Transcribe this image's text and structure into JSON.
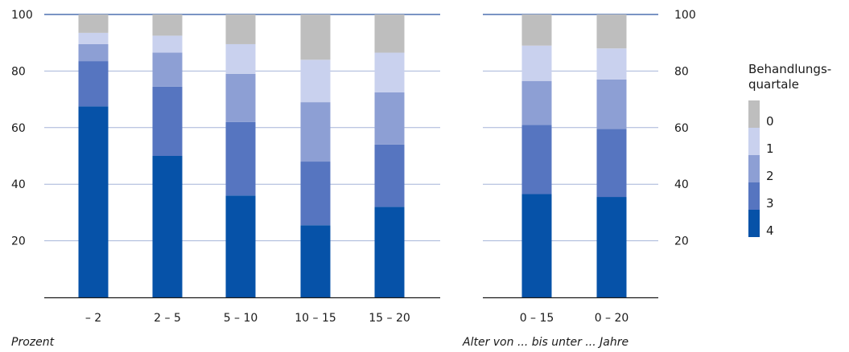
{
  "chart_data": {
    "type": "bar",
    "stacked": true,
    "ylim": [
      0,
      100
    ],
    "yticks": [
      20,
      40,
      60,
      80,
      100
    ],
    "ylabel": "Prozent",
    "xlabel": "Alter von ... bis unter ... Jahre",
    "legend_title": "Behandlungs- quartale",
    "legend_placement": "right",
    "series": [
      {
        "name": "4",
        "color": "#0652a8"
      },
      {
        "name": "3",
        "color": "#5675c0"
      },
      {
        "name": "2",
        "color": "#8d9fd4"
      },
      {
        "name": "1",
        "color": "#c9d1ee"
      },
      {
        "name": "0",
        "color": "#bebebe"
      }
    ],
    "panels": [
      {
        "categories": [
          "– 2",
          "2 – 5",
          "5 – 10",
          "10 – 15",
          "15 – 20"
        ],
        "values": [
          [
            67.5,
            16,
            6,
            4,
            6.5
          ],
          [
            50,
            24.5,
            12,
            6,
            7.5
          ],
          [
            36,
            26,
            17,
            10.5,
            10.5
          ],
          [
            25.5,
            22.5,
            21,
            15,
            16
          ],
          [
            32,
            22,
            18.5,
            14,
            13.5
          ]
        ]
      },
      {
        "categories": [
          "0 – 15",
          "0 – 20"
        ],
        "values": [
          [
            36.5,
            24.5,
            15.5,
            12.5,
            11
          ],
          [
            35.5,
            24,
            17.5,
            11,
            12
          ]
        ]
      }
    ]
  }
}
